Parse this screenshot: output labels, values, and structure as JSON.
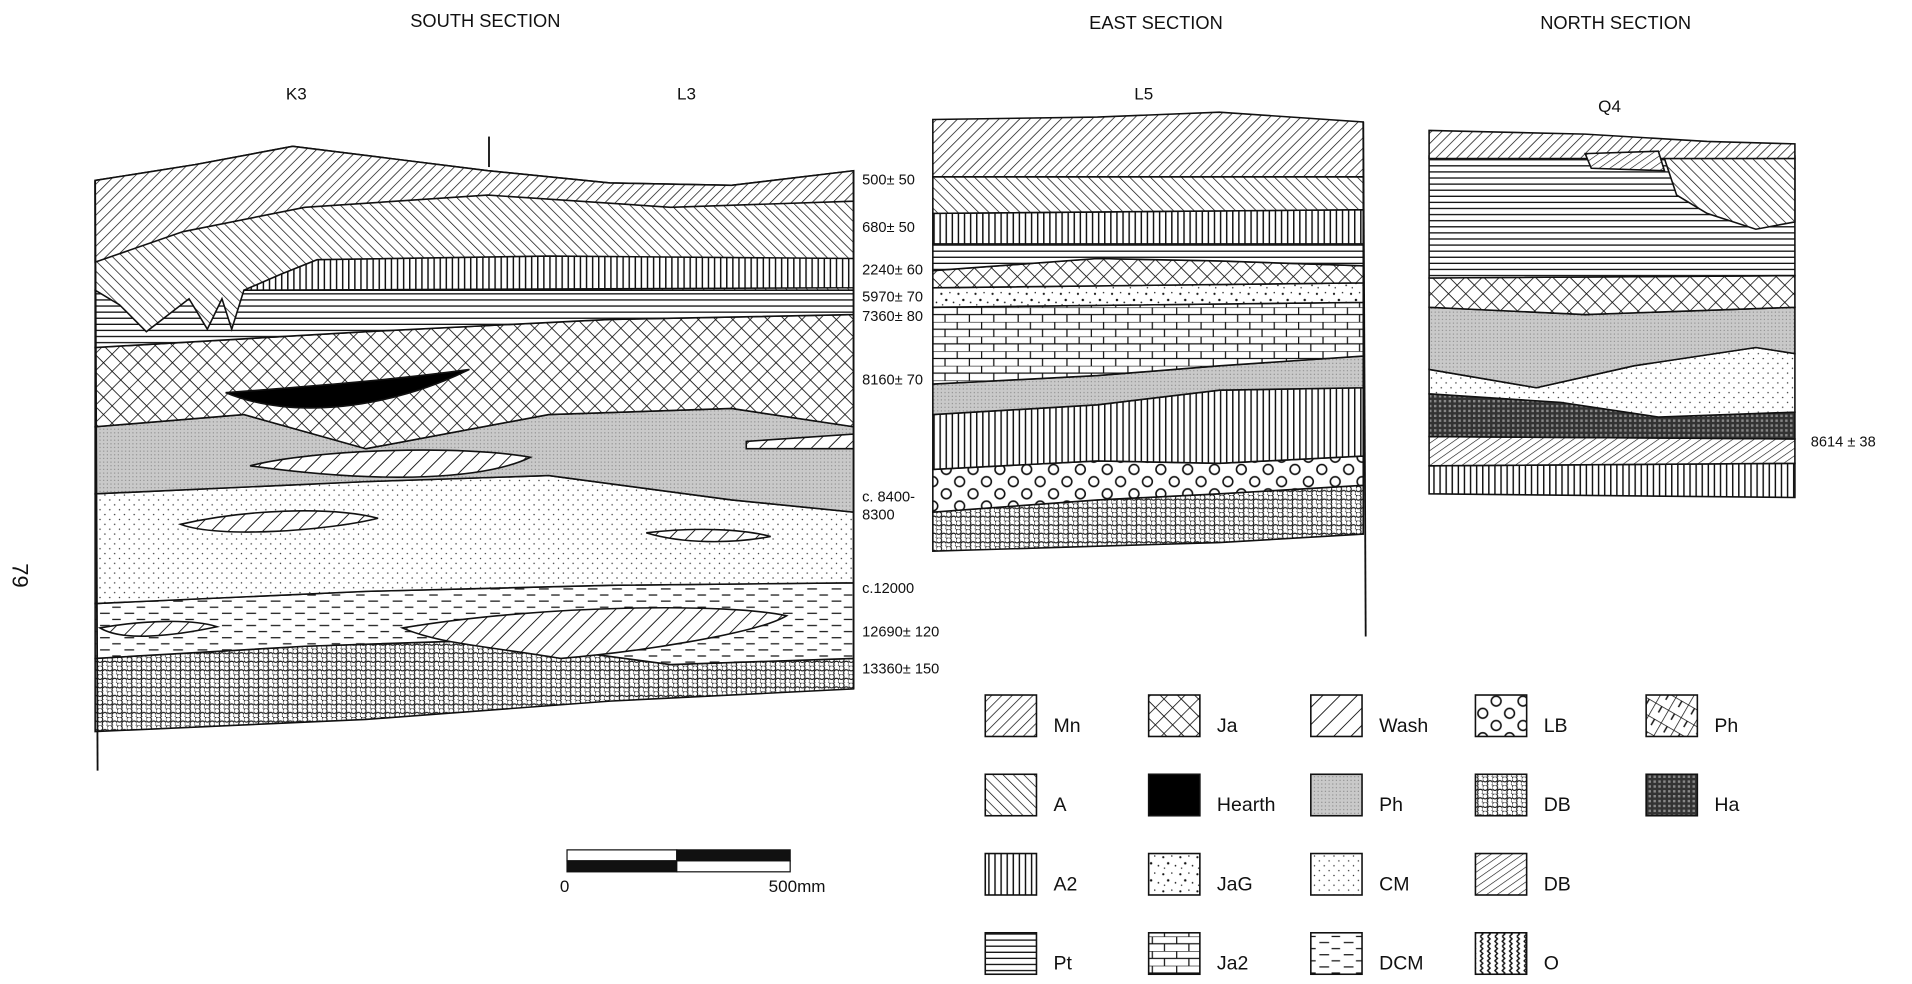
{
  "page_number": "79",
  "sections": [
    {
      "title": "SOUTH SECTION",
      "profiles": [
        "K3",
        "L3"
      ],
      "dates": [
        "500± 50",
        "680± 50",
        "2240± 60",
        "5970± 70",
        "7360± 80",
        "8160± 70",
        "c. 8400-",
        "8300",
        "c.12000",
        "12690± 120",
        "13360± 150"
      ]
    },
    {
      "title": "EAST SECTION",
      "profiles": [
        "L5"
      ],
      "dates": []
    },
    {
      "title": "NORTH SECTION",
      "profiles": [
        "Q4"
      ],
      "dates": [
        "8614 ± 38"
      ]
    }
  ],
  "legend": [
    "Mn",
    "A",
    "A2",
    "Pt",
    "Ja",
    "Hearth",
    "JaG",
    "Ja2",
    "Wash",
    "Ph",
    "CM",
    "DCM",
    "LB",
    "DB",
    "DB",
    "O",
    "Ph",
    "Ha"
  ],
  "scale_bar": {
    "start": "0",
    "end": "500mm"
  }
}
